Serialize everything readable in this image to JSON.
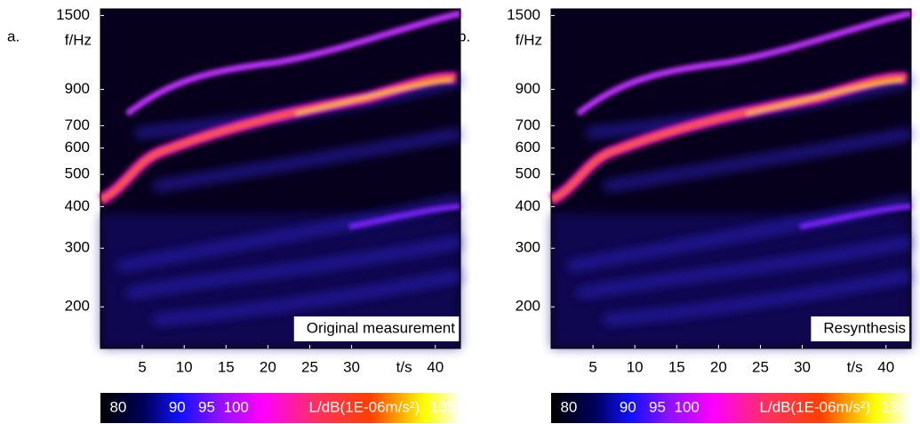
{
  "chart_data": [
    {
      "type": "spectrogram",
      "panel_label": "a.",
      "ylabel": "f/Hz",
      "xlabel": "t/s",
      "annotation": "Original measurement",
      "yscale": "log",
      "xlim": [
        0,
        43
      ],
      "ylim": [
        150,
        1570
      ],
      "xticks": [
        5,
        10,
        15,
        20,
        25,
        30,
        40
      ],
      "yticks": [
        200,
        300,
        400,
        500,
        600,
        700,
        900,
        1500
      ],
      "colorbar": {
        "label": "L/dB(1E-06m/s²)",
        "clim": [
          77,
          138
        ],
        "ticks": [
          80,
          90,
          95,
          100,
          135
        ]
      }
    },
    {
      "type": "spectrogram",
      "panel_label": "b.",
      "ylabel": "f/Hz",
      "xlabel": "t/s",
      "annotation": "Resynthesis",
      "yscale": "log",
      "xlim": [
        0,
        43
      ],
      "ylim": [
        150,
        1570
      ],
      "xticks": [
        5,
        10,
        15,
        20,
        25,
        30,
        40
      ],
      "yticks": [
        200,
        300,
        400,
        500,
        600,
        700,
        900,
        1500
      ],
      "colorbar": {
        "label": "L/dB(1E-06m/s²)",
        "clim": [
          77,
          138
        ],
        "ticks": [
          80,
          90,
          95,
          100,
          135
        ]
      }
    }
  ]
}
